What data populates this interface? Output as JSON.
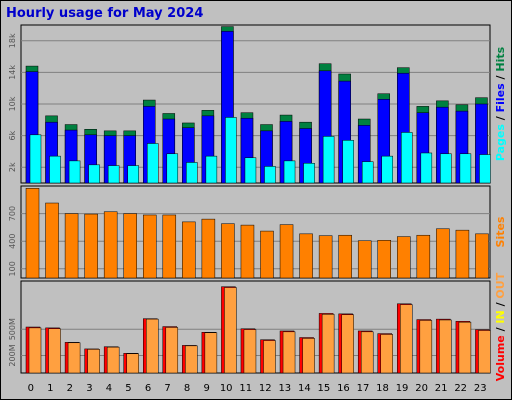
{
  "title": "Hourly usage for May 2024",
  "colors": {
    "background": "#c0c0c0",
    "plot": "#c0c0c0",
    "hits": "#008040",
    "files": "#0000ff",
    "pages": "#00ffff",
    "sites": "#ff8000",
    "volume": "#ff0000",
    "in": "#ffff00",
    "out": "#ffa040"
  },
  "x_labels": [
    "0",
    "1",
    "2",
    "3",
    "4",
    "5",
    "6",
    "7",
    "8",
    "9",
    "10",
    "11",
    "12",
    "13",
    "14",
    "15",
    "16",
    "17",
    "18",
    "19",
    "20",
    "21",
    "22",
    "23"
  ],
  "chart_data": [
    {
      "type": "bar",
      "name": "requests",
      "categories": [
        "0",
        "1",
        "2",
        "3",
        "4",
        "5",
        "6",
        "7",
        "8",
        "9",
        "10",
        "11",
        "12",
        "13",
        "14",
        "15",
        "16",
        "17",
        "18",
        "19",
        "20",
        "21",
        "22",
        "23"
      ],
      "series": [
        {
          "name": "Hits",
          "values": [
            14800,
            8500,
            7400,
            6800,
            6600,
            6600,
            10500,
            8800,
            7600,
            9200,
            19800,
            8900,
            7400,
            8600,
            7700,
            15100,
            13800,
            8100,
            11300,
            14600,
            9700,
            10400,
            9900,
            10800
          ]
        },
        {
          "name": "Files",
          "values": [
            14100,
            7700,
            6700,
            6100,
            6000,
            6000,
            9700,
            8100,
            7000,
            8500,
            19200,
            8200,
            6600,
            7800,
            6900,
            14200,
            12900,
            7300,
            10600,
            13900,
            8900,
            9600,
            9100,
            10000
          ]
        },
        {
          "name": "Pages",
          "values": [
            6100,
            3400,
            2800,
            2300,
            2200,
            2200,
            5000,
            3700,
            2600,
            3400,
            8300,
            3200,
            2100,
            2800,
            2500,
            5900,
            5400,
            2700,
            3400,
            6400,
            3800,
            3700,
            3700,
            3600
          ]
        }
      ],
      "ylabel": "Pages / Files / Hits",
      "yticks": [
        "2k",
        "6k",
        "10k",
        "14k",
        "18k"
      ],
      "ylim": [
        0,
        20000
      ]
    },
    {
      "type": "bar",
      "name": "sites",
      "categories": [
        "0",
        "1",
        "2",
        "3",
        "4",
        "5",
        "6",
        "7",
        "8",
        "9",
        "10",
        "11",
        "12",
        "13",
        "14",
        "15",
        "16",
        "17",
        "18",
        "19",
        "20",
        "21",
        "22",
        "23"
      ],
      "series": [
        {
          "name": "Sites",
          "values": [
            975,
            815,
            700,
            695,
            720,
            700,
            685,
            685,
            610,
            640,
            590,
            575,
            510,
            580,
            480,
            460,
            465,
            405,
            410,
            450,
            465,
            535,
            520,
            480
          ]
        }
      ],
      "ylabel": "Sites",
      "yticks": [
        "100",
        "400",
        "700"
      ],
      "ylim": [
        0,
        1000
      ]
    },
    {
      "type": "bar",
      "name": "volume",
      "categories": [
        "0",
        "1",
        "2",
        "3",
        "4",
        "5",
        "6",
        "7",
        "8",
        "9",
        "10",
        "11",
        "12",
        "13",
        "14",
        "15",
        "16",
        "17",
        "18",
        "19",
        "20",
        "21",
        "22",
        "23"
      ],
      "series": [
        {
          "name": "Volume",
          "values": [
            525,
            515,
            350,
            275,
            300,
            225,
            620,
            530,
            315,
            465,
            985,
            505,
            380,
            480,
            405,
            680,
            675,
            480,
            450,
            790,
            610,
            615,
            590,
            495
          ]
        },
        {
          "name": "IN",
          "values": [
            0,
            0,
            0,
            0,
            0,
            0,
            0,
            0,
            0,
            0,
            0,
            0,
            0,
            0,
            0,
            0,
            0,
            0,
            0,
            0,
            0,
            0,
            0,
            0
          ]
        },
        {
          "name": "OUT",
          "values": [
            515,
            505,
            345,
            270,
            295,
            220,
            615,
            520,
            310,
            460,
            975,
            495,
            370,
            470,
            395,
            670,
            665,
            470,
            440,
            780,
            600,
            605,
            580,
            485
          ]
        }
      ],
      "ylabel": "Volume / IN / OUT",
      "yticks": [
        "200M",
        "500M"
      ],
      "ylim": [
        0,
        1050
      ]
    }
  ],
  "axis_labels": {
    "top": [
      {
        "text": "Pages",
        "color": "#00ffff"
      },
      {
        "text": " / ",
        "color": "#000000"
      },
      {
        "text": "Files",
        "color": "#0000ff"
      },
      {
        "text": " / ",
        "color": "#000000"
      },
      {
        "text": "Hits",
        "color": "#008040"
      }
    ],
    "middle": [
      {
        "text": "Sites",
        "color": "#ff8000"
      }
    ],
    "bottom": [
      {
        "text": "Volume",
        "color": "#ff0000"
      },
      {
        "text": " / ",
        "color": "#000000"
      },
      {
        "text": "IN",
        "color": "#ffff00"
      },
      {
        "text": " / ",
        "color": "#000000"
      },
      {
        "text": "OUT",
        "color": "#ffa040"
      }
    ]
  }
}
